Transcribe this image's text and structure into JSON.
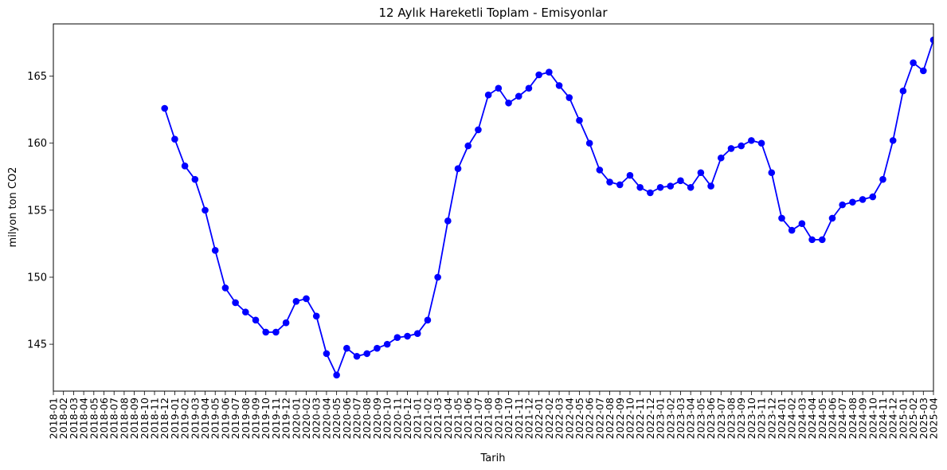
{
  "chart_data": {
    "type": "line",
    "title": "12 Aylık Hareketli Toplam - Emisyonlar",
    "xlabel": "Tarih",
    "ylabel": "milyon ton CO2",
    "ylim": [
      141.5,
      168.9
    ],
    "yticks": [
      145,
      150,
      155,
      160,
      165
    ],
    "grid": false,
    "line_color": "#0000ff",
    "marker": "circle",
    "x_categories": [
      "2018-01",
      "2018-02",
      "2018-03",
      "2018-04",
      "2018-05",
      "2018-06",
      "2018-07",
      "2018-08",
      "2018-09",
      "2018-10",
      "2018-11",
      "2018-12",
      "2019-01",
      "2019-02",
      "2019-03",
      "2019-04",
      "2019-05",
      "2019-06",
      "2019-07",
      "2019-08",
      "2019-09",
      "2019-10",
      "2019-11",
      "2019-12",
      "2020-01",
      "2020-02",
      "2020-03",
      "2020-04",
      "2020-05",
      "2020-06",
      "2020-07",
      "2020-08",
      "2020-09",
      "2020-10",
      "2020-11",
      "2020-12",
      "2021-01",
      "2021-02",
      "2021-03",
      "2021-04",
      "2021-05",
      "2021-06",
      "2021-07",
      "2021-08",
      "2021-09",
      "2021-10",
      "2021-11",
      "2021-12",
      "2022-01",
      "2022-02",
      "2022-03",
      "2022-04",
      "2022-05",
      "2022-06",
      "2022-07",
      "2022-08",
      "2022-09",
      "2022-10",
      "2022-11",
      "2022-12",
      "2023-01",
      "2023-02",
      "2023-03",
      "2023-04",
      "2023-05",
      "2023-06",
      "2023-07",
      "2023-08",
      "2023-09",
      "2023-10",
      "2023-11",
      "2023-12",
      "2024-01",
      "2024-02",
      "2024-03",
      "2024-04",
      "2024-05",
      "2024-06",
      "2024-07",
      "2024-08",
      "2024-09",
      "2024-10",
      "2024-11",
      "2024-12",
      "2025-01",
      "2025-02",
      "2025-03",
      "2025-04"
    ],
    "series": [
      {
        "values": [
          null,
          null,
          null,
          null,
          null,
          null,
          null,
          null,
          null,
          null,
          null,
          162.6,
          160.3,
          158.3,
          157.3,
          155.0,
          152.0,
          149.2,
          148.1,
          147.4,
          146.8,
          145.9,
          145.9,
          146.6,
          148.2,
          148.4,
          147.1,
          144.3,
          142.7,
          144.7,
          144.1,
          144.3,
          144.7,
          145.0,
          145.5,
          145.6,
          145.8,
          146.8,
          150.0,
          154.2,
          158.1,
          159.8,
          161.0,
          163.6,
          164.1,
          163.0,
          163.5,
          164.1,
          165.1,
          165.3,
          164.3,
          163.4,
          161.7,
          160.0,
          158.0,
          157.1,
          156.9,
          157.6,
          156.7,
          156.3,
          156.7,
          156.8,
          157.2,
          156.7,
          157.8,
          156.8,
          158.9,
          159.6,
          159.8,
          160.2,
          160.0,
          157.8,
          154.4,
          153.5,
          154.0,
          152.8,
          152.8,
          154.4,
          155.4,
          155.6,
          155.8,
          156.0,
          157.3,
          160.2,
          163.9,
          166.0,
          165.4,
          167.7
        ]
      }
    ]
  }
}
